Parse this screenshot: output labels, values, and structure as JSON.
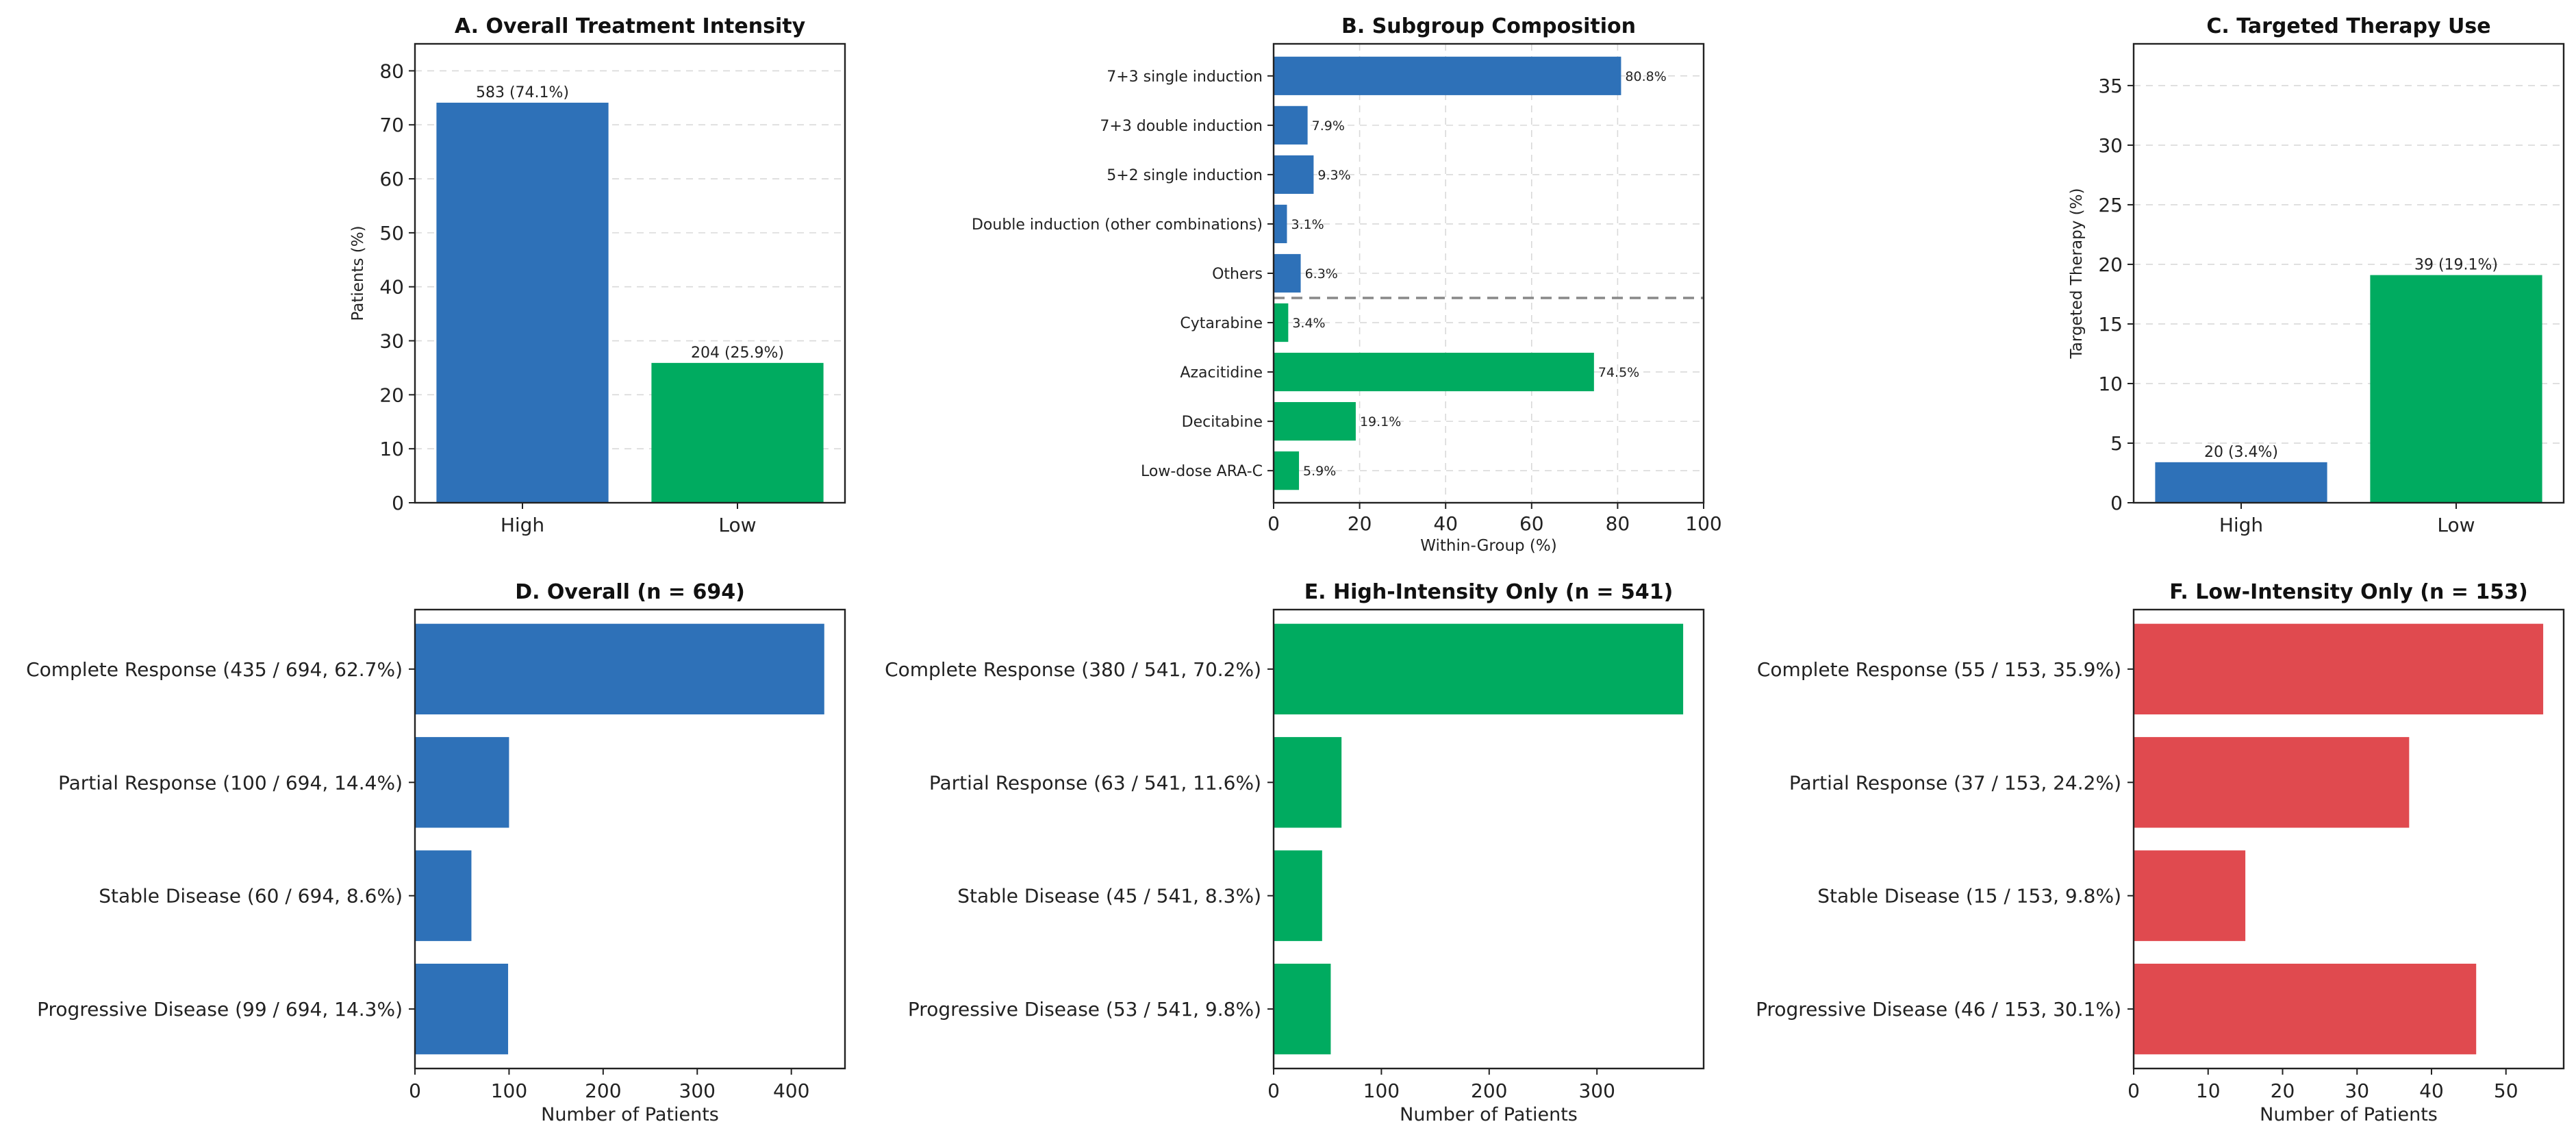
{
  "colors": {
    "high": "#2e71b8",
    "low": "#00ab60",
    "red": "#e04a4f",
    "grid": "#d9d9d9",
    "divider": "#888888"
  },
  "chart_data": [
    {
      "id": "A",
      "type": "bar",
      "title": "A. Overall Treatment Intensity",
      "categories": [
        "High",
        "Low"
      ],
      "values": [
        74.1,
        25.9
      ],
      "labels": [
        "583 (74.1%)",
        "204 (25.9%)"
      ],
      "colors": [
        "#2e71b8",
        "#00ab60"
      ],
      "xlabel": "",
      "ylabel": "Patients (%)",
      "ylim": [
        0,
        85
      ],
      "yticks": [
        0,
        10,
        20,
        30,
        40,
        50,
        60,
        70,
        80
      ],
      "grid": true
    },
    {
      "id": "B",
      "type": "bar",
      "orientation": "horizontal",
      "title": "B. Subgroup Composition",
      "categories": [
        "7+3 single induction",
        "7+3 double induction",
        "5+2 single induction",
        "Double induction (other combinations)",
        "Others",
        "Cytarabine",
        "Azacitidine",
        "Decitabine",
        "Low-dose ARA-C"
      ],
      "values": [
        80.8,
        7.9,
        9.3,
        3.1,
        6.3,
        3.4,
        74.5,
        19.1,
        5.9
      ],
      "labels": [
        "80.8%",
        "7.9%",
        "9.3%",
        "3.1%",
        "6.3%",
        "3.4%",
        "74.5%",
        "19.1%",
        "5.9%"
      ],
      "groups": [
        "high",
        "high",
        "high",
        "high",
        "high",
        "low",
        "low",
        "low",
        "low"
      ],
      "xlabel": "Within-Group (%)",
      "ylabel": "",
      "xlim": [
        0,
        100
      ],
      "xticks": [
        0,
        20,
        40,
        60,
        80,
        100
      ],
      "grid": true
    },
    {
      "id": "C",
      "type": "bar",
      "title": "C. Targeted Therapy Use",
      "categories": [
        "High",
        "Low"
      ],
      "values": [
        3.4,
        19.1
      ],
      "labels": [
        "20 (3.4%)",
        "39 (19.1%)"
      ],
      "colors": [
        "#2e71b8",
        "#00ab60"
      ],
      "xlabel": "",
      "ylabel": "Targeted Therapy (%)",
      "ylim": [
        0,
        38.5
      ],
      "yticks": [
        0,
        5,
        10,
        15,
        20,
        25,
        30,
        35
      ],
      "grid": true
    },
    {
      "id": "D",
      "type": "bar",
      "orientation": "horizontal",
      "title": "D. Overall (n = 694)",
      "categories": [
        "Complete Response (435 / 694, 62.7%)",
        "Partial Response (100 / 694, 14.4%)",
        "Stable Disease (60 / 694, 8.6%)",
        "Progressive Disease (99 / 694, 14.3%)"
      ],
      "values": [
        435,
        100,
        60,
        99
      ],
      "color": "#2e71b8",
      "xlabel": "Number of Patients",
      "xlim": [
        0,
        457
      ],
      "xticks": [
        0,
        100,
        200,
        300,
        400
      ],
      "grid": false
    },
    {
      "id": "E",
      "type": "bar",
      "orientation": "horizontal",
      "title": "E. High-Intensity Only (n = 541)",
      "categories": [
        "Complete Response (380 / 541, 70.2%)",
        "Partial Response (63 / 541, 11.6%)",
        "Stable Disease (45 / 541, 8.3%)",
        "Progressive Disease (53 / 541, 9.8%)"
      ],
      "values": [
        380,
        63,
        45,
        53
      ],
      "color": "#00ab60",
      "xlabel": "Number of Patients",
      "xlim": [
        0,
        399
      ],
      "xticks": [
        0,
        100,
        200,
        300
      ],
      "grid": false
    },
    {
      "id": "F",
      "type": "bar",
      "orientation": "horizontal",
      "title": "F. Low-Intensity Only (n = 153)",
      "categories": [
        "Complete Response (55 / 153, 35.9%)",
        "Partial Response (37 / 153, 24.2%)",
        "Stable Disease (15 / 153, 9.8%)",
        "Progressive Disease (46 / 153, 30.1%)"
      ],
      "values": [
        55,
        37,
        15,
        46
      ],
      "color": "#e04a4f",
      "xlabel": "Number of Patients",
      "xlim": [
        0,
        57.75
      ],
      "xticks": [
        0,
        10,
        20,
        30,
        40,
        50
      ],
      "grid": false
    }
  ]
}
